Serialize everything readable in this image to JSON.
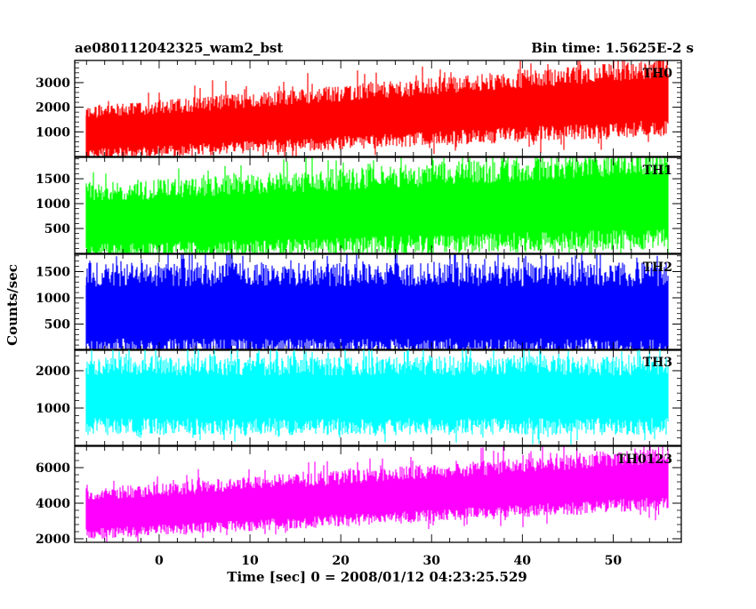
{
  "header": {
    "left_title": "ae080112042325_wam2_bst",
    "right_title": "Bin time: 1.5625E-2 s"
  },
  "axes": {
    "xlabel": "Time [sec] 0 = 2008/01/12 04:23:25.529",
    "ylabel": "Counts/sec"
  },
  "chart_data": {
    "type": "line",
    "title": "ae080112042325_wam2_bst",
    "subtitle": "Bin time: 1.5625E-2 s",
    "xlabel": "Time [sec] 0 = 2008/01/12 04:23:25.529",
    "ylabel": "Counts/sec",
    "xlim": [
      -9.3,
      57.5
    ],
    "x_start": -8.0,
    "x_end": 56.0,
    "bin_time": 0.015625,
    "x_ticks": [
      0,
      10,
      20,
      30,
      40,
      50
    ],
    "x_tick_labels": [
      "0",
      "10",
      "20",
      "30",
      "40",
      "50"
    ],
    "grid": false,
    "legend": "none",
    "panels": [
      {
        "name": "TH0",
        "color": "#ff0000",
        "ylim": [
          0,
          3900
        ],
        "yticks": [
          1000,
          2000,
          3000
        ],
        "ytick_labels": [
          "1000",
          "2000",
          "3000"
        ],
        "trend_start": 900,
        "trend_end": 2350,
        "noise_start": 400,
        "noise_end": 560,
        "spikes": [
          [
            -8,
            1900
          ],
          [
            54.5,
            3800
          ],
          [
            51,
            3550
          ],
          [
            44,
            3300
          ],
          [
            52.5,
            3650
          ]
        ]
      },
      {
        "name": "TH1",
        "color": "#00ff00",
        "ylim": [
          0,
          1930
        ],
        "yticks": [
          500,
          1000,
          1500
        ],
        "ytick_labels": [
          "500",
          "1000",
          "1500"
        ],
        "trend_start": 600,
        "trend_end": 1050,
        "noise_start": 280,
        "noise_end": 360,
        "spikes": [
          [
            -8,
            1100
          ],
          [
            20,
            1700
          ],
          [
            42,
            1880
          ],
          [
            49,
            1900
          ],
          [
            53,
            1920
          ]
        ]
      },
      {
        "name": "TH2",
        "color": "#0000ff",
        "ylim": [
          0,
          1830
        ],
        "yticks": [
          500,
          1000,
          1500
        ],
        "ytick_labels": [
          "500",
          "1000",
          "1500"
        ],
        "trend_start": 720,
        "trend_end": 720,
        "noise_start": 330,
        "noise_end": 330,
        "spikes": [
          [
            -8,
            1400
          ],
          [
            26,
            1820
          ],
          [
            17,
            1700
          ],
          [
            8,
            1650
          ],
          [
            37,
            1700
          ]
        ]
      },
      {
        "name": "TH3",
        "color": "#00ffff",
        "ylim": [
          0,
          2570
        ],
        "yticks": [
          1000,
          2000
        ],
        "ytick_labels": [
          "1000",
          "2000"
        ],
        "trend_start": 1300,
        "trend_end": 1300,
        "noise_start": 380,
        "noise_end": 380,
        "spikes": [
          [
            -8,
            1700
          ],
          [
            13,
            2500
          ],
          [
            27,
            2500
          ],
          [
            54,
            2520
          ],
          [
            44,
            2450
          ]
        ]
      },
      {
        "name": "TH0123",
        "color": "#ff00ff",
        "ylim": [
          1800,
          7200
        ],
        "yticks": [
          2000,
          4000,
          6000
        ],
        "ytick_labels": [
          "2000",
          "4000",
          "6000"
        ],
        "trend_start": 3350,
        "trend_end": 5300,
        "noise_start": 520,
        "noise_end": 620,
        "spikes": [
          [
            -8,
            4200
          ],
          [
            -4,
            5000
          ],
          [
            46,
            7100
          ],
          [
            55,
            7150
          ],
          [
            53,
            7000
          ]
        ]
      }
    ]
  }
}
